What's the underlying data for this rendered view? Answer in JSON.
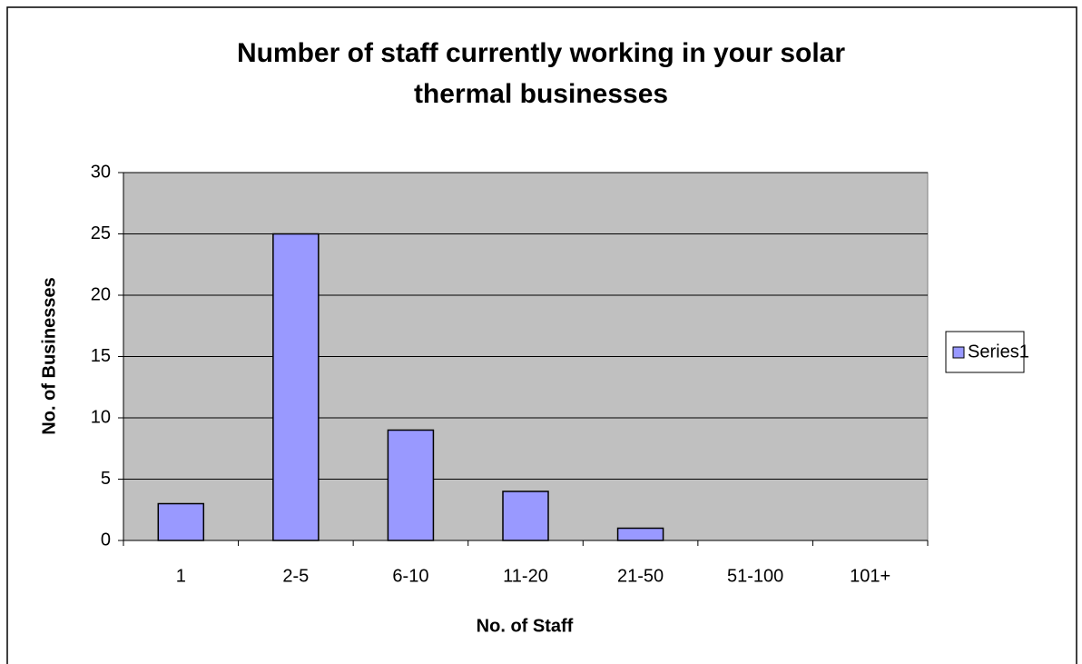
{
  "chart_data": {
    "type": "bar",
    "title": "Number of staff currently working in your solar thermal businesses",
    "x_label": "No. of Staff",
    "y_label": "No. of Businesses",
    "categories": [
      "1",
      "2-5",
      "6-10",
      "11-20",
      "21-50",
      "51-100",
      "101+"
    ],
    "series": [
      {
        "name": "Series1",
        "color": "#9999ff",
        "values": [
          3,
          25,
          9,
          4,
          1,
          0,
          0
        ]
      }
    ],
    "ylim": [
      0,
      30
    ],
    "yticks": [
      0,
      5,
      10,
      15,
      20,
      25,
      30
    ],
    "grid": true,
    "legend": "right"
  }
}
